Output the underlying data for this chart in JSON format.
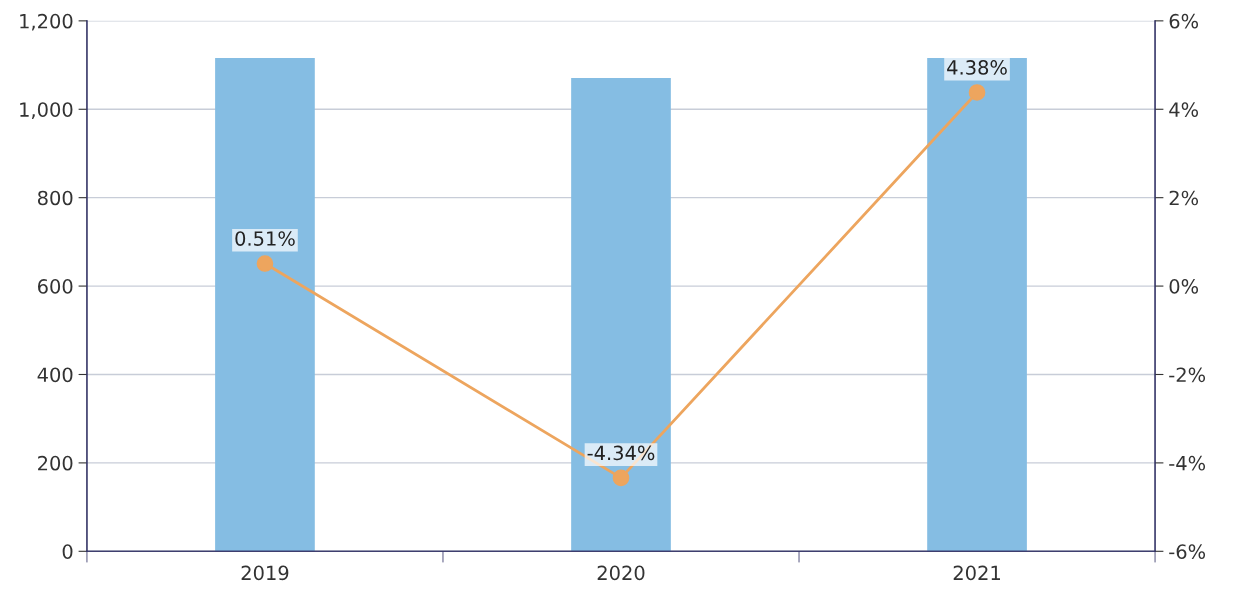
{
  "chart_data": {
    "type": "bar",
    "categories": [
      "2019",
      "2020",
      "2021"
    ],
    "series": [
      {
        "color": "#85bde3",
        "values": [
          1116,
          1071,
          1116
        ]
      },
      {
        "type": "line",
        "axis": "y2",
        "color": "#eda55e",
        "values": [
          0.51,
          -4.34,
          4.38
        ],
        "value_labels": [
          "0.51%",
          "-4.34%",
          "4.38%"
        ]
      }
    ],
    "ylim": [
      0,
      1200
    ],
    "yticks": [
      0,
      200,
      400,
      600,
      800,
      {
        "value": 1000,
        "label": "1,000"
      },
      {
        "value": 1200,
        "label": "1,200"
      }
    ],
    "y2lim": [
      -6,
      6
    ],
    "y2ticks": [
      {
        "value": -6,
        "label": "-6%"
      },
      {
        "value": -4,
        "label": "-4%"
      },
      {
        "value": -2,
        "label": "-2%"
      },
      {
        "value": 0,
        "label": "0%"
      },
      {
        "value": 2,
        "label": "2%"
      },
      {
        "value": 4,
        "label": "4%"
      },
      {
        "value": 6,
        "label": "6%"
      }
    ],
    "grid": "y",
    "marker": "circle"
  }
}
